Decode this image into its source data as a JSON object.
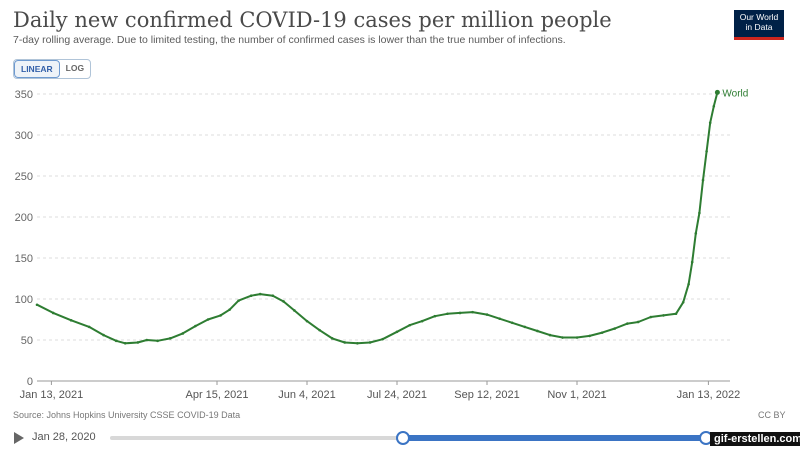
{
  "header": {
    "title": "Daily new confirmed COVID-19 cases per million people",
    "subtitle": "7-day rolling average. Due to limited testing, the number of confirmed cases is lower than the true number of infections.",
    "logo_line1": "Our World",
    "logo_line2": "in Data"
  },
  "controls": {
    "linear_label": "LINEAR",
    "log_label": "LOG",
    "active_scale": "linear"
  },
  "footer": {
    "source": "Source: Johns Hopkins University CSSE COVID-19 Data",
    "license": "CC BY"
  },
  "timeline": {
    "start_label": "Jan 28, 2020"
  },
  "watermark": "gif-erstellen.com",
  "colors": {
    "series": "#2e7d32",
    "accent": "#3b74c4",
    "logo_bg": "#002147",
    "logo_red": "#ce261e"
  },
  "chart_data": {
    "type": "line",
    "title": "Daily new confirmed COVID-19 cases per million people",
    "ylim": [
      0,
      350
    ],
    "y_ticks": [
      0,
      50,
      100,
      150,
      200,
      250,
      300,
      350
    ],
    "x_range": [
      "2021-01-05",
      "2022-01-25"
    ],
    "x_ticks": [
      {
        "date": "2021-01-13",
        "label": "Jan 13, 2021"
      },
      {
        "date": "2021-04-15",
        "label": "Apr 15, 2021"
      },
      {
        "date": "2021-06-04",
        "label": "Jun 4, 2021"
      },
      {
        "date": "2021-07-24",
        "label": "Jul 24, 2021"
      },
      {
        "date": "2021-09-12",
        "label": "Sep 12, 2021"
      },
      {
        "date": "2021-11-01",
        "label": "Nov 1, 2021"
      },
      {
        "date": "2022-01-13",
        "label": "Jan 13, 2022"
      }
    ],
    "grid": true,
    "series": [
      {
        "name": "World",
        "points": [
          [
            "2021-01-05",
            93
          ],
          [
            "2021-01-14",
            83
          ],
          [
            "2021-01-24",
            74
          ],
          [
            "2021-02-03",
            66
          ],
          [
            "2021-02-11",
            56
          ],
          [
            "2021-02-18",
            49
          ],
          [
            "2021-02-23",
            46
          ],
          [
            "2021-03-02",
            47
          ],
          [
            "2021-03-07",
            50
          ],
          [
            "2021-03-13",
            49
          ],
          [
            "2021-03-20",
            52
          ],
          [
            "2021-03-27",
            58
          ],
          [
            "2021-04-03",
            67
          ],
          [
            "2021-04-10",
            75
          ],
          [
            "2021-04-17",
            80
          ],
          [
            "2021-04-22",
            87
          ],
          [
            "2021-04-27",
            98
          ],
          [
            "2021-05-04",
            104
          ],
          [
            "2021-05-09",
            106
          ],
          [
            "2021-05-16",
            104
          ],
          [
            "2021-05-22",
            97
          ],
          [
            "2021-05-28",
            86
          ],
          [
            "2021-06-04",
            73
          ],
          [
            "2021-06-11",
            62
          ],
          [
            "2021-06-18",
            52
          ],
          [
            "2021-06-25",
            47
          ],
          [
            "2021-07-02",
            46
          ],
          [
            "2021-07-09",
            47
          ],
          [
            "2021-07-16",
            51
          ],
          [
            "2021-07-24",
            60
          ],
          [
            "2021-07-31",
            68
          ],
          [
            "2021-08-07",
            73
          ],
          [
            "2021-08-14",
            79
          ],
          [
            "2021-08-21",
            82
          ],
          [
            "2021-08-28",
            83
          ],
          [
            "2021-09-04",
            84
          ],
          [
            "2021-09-12",
            81
          ],
          [
            "2021-09-19",
            76
          ],
          [
            "2021-09-26",
            71
          ],
          [
            "2021-10-03",
            66
          ],
          [
            "2021-10-10",
            61
          ],
          [
            "2021-10-17",
            56
          ],
          [
            "2021-10-24",
            53
          ],
          [
            "2021-11-01",
            53
          ],
          [
            "2021-11-08",
            55
          ],
          [
            "2021-11-15",
            59
          ],
          [
            "2021-11-22",
            64
          ],
          [
            "2021-11-29",
            70
          ],
          [
            "2021-12-05",
            72
          ],
          [
            "2021-12-12",
            78
          ],
          [
            "2021-12-19",
            80
          ],
          [
            "2021-12-26",
            82
          ],
          [
            "2021-12-30",
            96
          ],
          [
            "2022-01-02",
            118
          ],
          [
            "2022-01-04",
            145
          ],
          [
            "2022-01-06",
            180
          ],
          [
            "2022-01-08",
            205
          ],
          [
            "2022-01-10",
            245
          ],
          [
            "2022-01-12",
            280
          ],
          [
            "2022-01-14",
            315
          ],
          [
            "2022-01-16",
            335
          ],
          [
            "2022-01-18",
            352
          ]
        ]
      }
    ]
  }
}
